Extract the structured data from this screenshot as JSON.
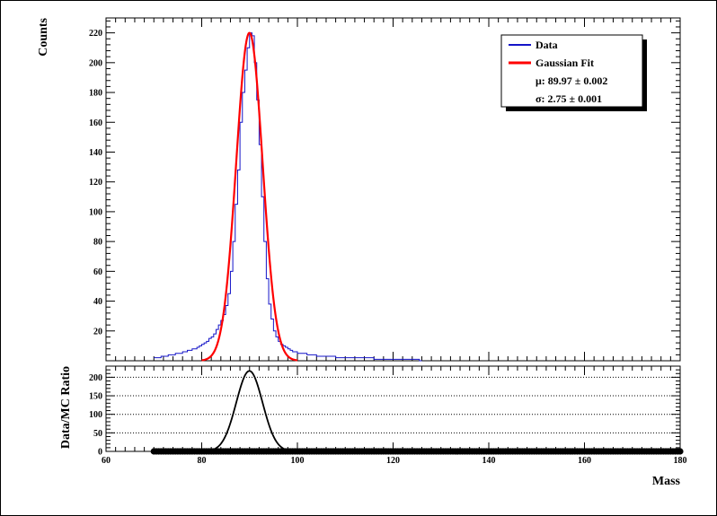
{
  "chart_data": [
    {
      "type": "line",
      "ylabel": "Counts",
      "xlim": [
        60,
        180
      ],
      "ylim": [
        0,
        230
      ],
      "yticks": [
        20,
        40,
        60,
        80,
        100,
        120,
        140,
        160,
        180,
        200,
        220
      ],
      "legend_position": "top-right",
      "legend": {
        "entries": [
          {
            "label": "Data",
            "color": "#1414c8"
          },
          {
            "label": "Gaussian Fit",
            "color": "#ff0000"
          }
        ],
        "mu_text": "μ: 89.97 ± 0.002",
        "sigma_text": "σ: 2.75 ± 0.001"
      },
      "series": [
        {
          "name": "Data",
          "color": "#1414c8",
          "style": "step",
          "bin_width": 0.5,
          "x": [
            70,
            70.5,
            71,
            71.5,
            72,
            72.5,
            73,
            73.5,
            74,
            74.5,
            75,
            75.5,
            76,
            76.5,
            77,
            77.5,
            78,
            78.5,
            79,
            79.5,
            80,
            80.5,
            81,
            81.5,
            82,
            82.5,
            83,
            83.5,
            84,
            84.5,
            85,
            85.5,
            86,
            86.5,
            87,
            87.5,
            88,
            88.5,
            89,
            89.5,
            90,
            90.5,
            91,
            91.5,
            92,
            92.5,
            93,
            93.5,
            94,
            94.5,
            95,
            95.5,
            96,
            96.5,
            97,
            97.5,
            98,
            98.5,
            99,
            99.5,
            100,
            101,
            102,
            103,
            104,
            105,
            106,
            107,
            108,
            109,
            110,
            112,
            114,
            116,
            118,
            120,
            122,
            124,
            125.5
          ],
          "values": [
            2,
            2,
            2,
            3,
            3,
            3,
            4,
            4,
            4,
            5,
            5,
            5,
            6,
            6,
            7,
            7,
            8,
            8,
            9,
            10,
            11,
            12,
            13,
            15,
            16,
            18,
            21,
            24,
            27,
            31,
            37,
            45,
            60,
            80,
            105,
            128,
            160,
            180,
            195,
            210,
            220,
            218,
            200,
            175,
            145,
            110,
            80,
            55,
            38,
            28,
            20,
            16,
            13,
            11,
            10,
            9,
            8,
            7,
            6,
            6,
            5,
            5,
            4,
            4,
            3,
            3,
            3,
            3,
            2,
            2,
            2,
            2,
            2,
            1,
            1,
            1,
            1,
            1,
            0
          ]
        },
        {
          "name": "Gaussian Fit",
          "color": "#ff0000",
          "style": "gaussian",
          "amplitude": 220,
          "mu": 89.97,
          "sigma": 2.75,
          "range": [
            80,
            100
          ]
        }
      ]
    },
    {
      "type": "line",
      "ylabel": "Data/MC Ratio",
      "xlabel": "Mass",
      "xlim": [
        60,
        180
      ],
      "ylim": [
        0,
        230
      ],
      "xticks": [
        60,
        80,
        100,
        120,
        140,
        160,
        180
      ],
      "yticks": [
        0,
        50,
        100,
        150,
        200
      ],
      "grid": "horizontal dotted",
      "series": [
        {
          "style": "gaussian",
          "color": "#000000",
          "amplitude": 217,
          "mu": 89.97,
          "sigma": 2.75,
          "range": [
            82,
            98
          ]
        },
        {
          "style": "markers",
          "color": "#000000",
          "y": 0,
          "x_start": 70,
          "x_end": 180,
          "step": 0.5
        }
      ]
    }
  ]
}
